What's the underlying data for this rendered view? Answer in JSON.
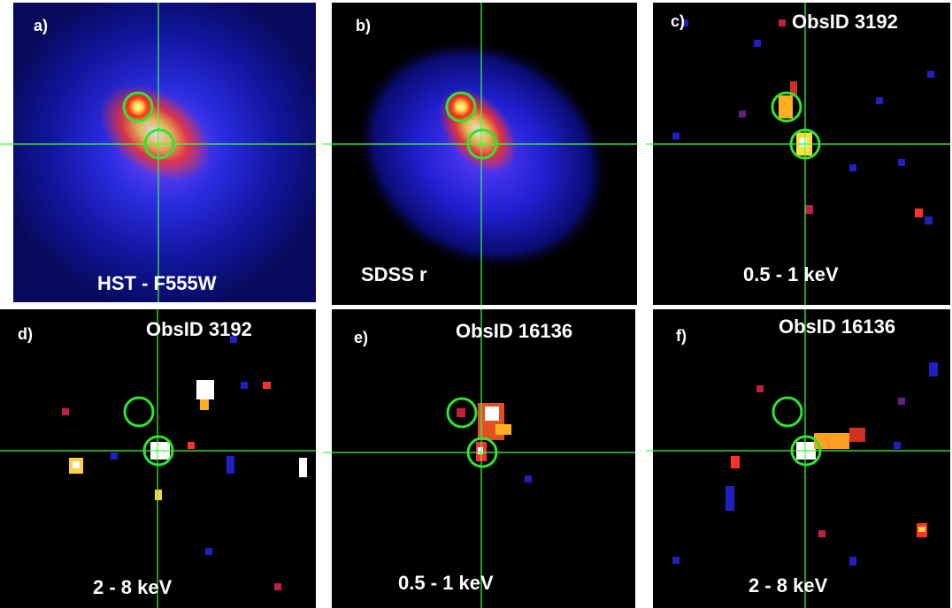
{
  "panels": [
    {
      "label": "a)",
      "bottom_text": "HST - F555W"
    },
    {
      "label": "b)",
      "bottom_text": "SDSS r"
    },
    {
      "label": "c)",
      "top_text": "ObsID 3192",
      "bottom_text": "0.5 - 1 keV"
    },
    {
      "label": "d)",
      "top_text": "ObsID 3192",
      "bottom_text": "2 - 8 keV"
    },
    {
      "label": "e)",
      "top_text": "ObsID 16136",
      "bottom_text": "0.5 - 1 keV"
    },
    {
      "label": "f)",
      "top_text": "ObsID 16136",
      "bottom_text": "2 - 8 keV"
    }
  ]
}
